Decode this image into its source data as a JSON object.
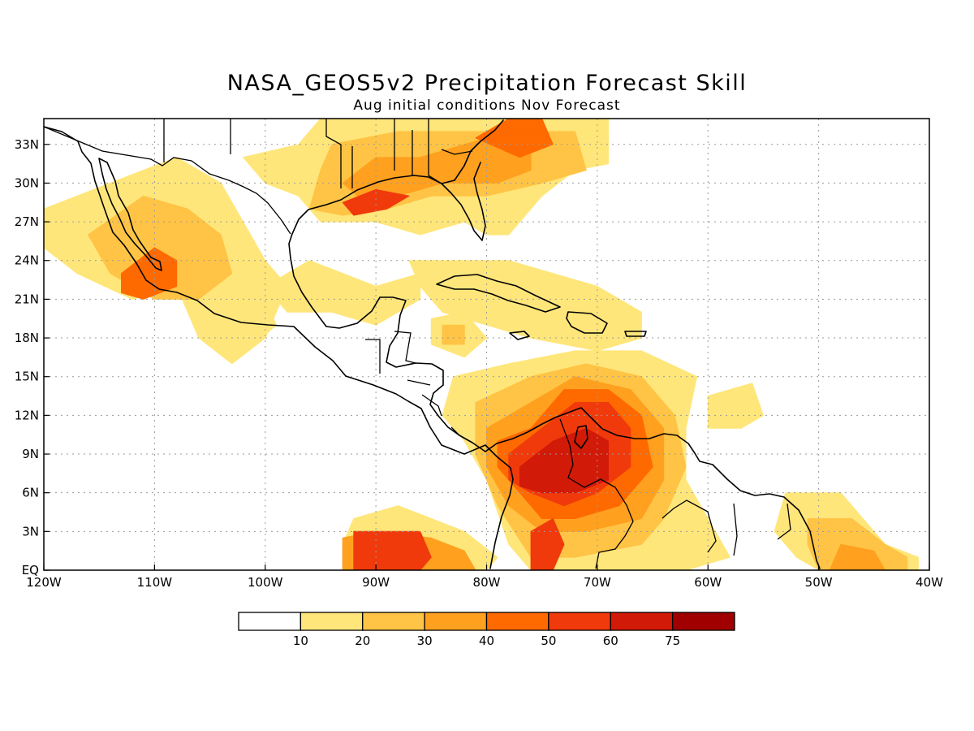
{
  "title": "NASA_GEOS5v2 Precipitation Forecast Skill",
  "subtitle": "Aug initial conditions  Nov Forecast",
  "map": {
    "lon_range": [
      -120,
      -40
    ],
    "lat_range": [
      0,
      35
    ],
    "lon_ticks": [
      {
        "v": -120,
        "label": "120W"
      },
      {
        "v": -110,
        "label": "110W"
      },
      {
        "v": -100,
        "label": "100W"
      },
      {
        "v": -90,
        "label": "90W"
      },
      {
        "v": -80,
        "label": "80W"
      },
      {
        "v": -70,
        "label": "70W"
      },
      {
        "v": -60,
        "label": "60W"
      },
      {
        "v": -50,
        "label": "50W"
      },
      {
        "v": -40,
        "label": "40W"
      }
    ],
    "lat_ticks": [
      {
        "v": 0,
        "label": "EQ"
      },
      {
        "v": 3,
        "label": "3N"
      },
      {
        "v": 6,
        "label": "6N"
      },
      {
        "v": 9,
        "label": "9N"
      },
      {
        "v": 12,
        "label": "12N"
      },
      {
        "v": 15,
        "label": "15N"
      },
      {
        "v": 18,
        "label": "18N"
      },
      {
        "v": 21,
        "label": "21N"
      },
      {
        "v": 24,
        "label": "24N"
      },
      {
        "v": 27,
        "label": "27N"
      },
      {
        "v": 30,
        "label": "30N"
      },
      {
        "v": 33,
        "label": "33N"
      }
    ],
    "gridlines": true
  },
  "colorbar": {
    "colors": [
      "#ffffff",
      "#ffe67a",
      "#ffc445",
      "#ffa01f",
      "#ff6a00",
      "#f03a0c",
      "#d21a08",
      "#a00000"
    ],
    "labels": [
      "10",
      "20",
      "30",
      "40",
      "50",
      "60",
      "75"
    ]
  },
  "skill_regions": [
    {
      "level": 1,
      "pts": [
        [
          -120,
          28
        ],
        [
          -114,
          30
        ],
        [
          -108,
          32
        ],
        [
          -104,
          30
        ],
        [
          -102,
          27
        ],
        [
          -100,
          24
        ],
        [
          -98,
          22
        ],
        [
          -100,
          18
        ],
        [
          -103,
          16
        ],
        [
          -106,
          18
        ],
        [
          -108,
          22
        ],
        [
          -112,
          21
        ],
        [
          -117,
          23
        ],
        [
          -120,
          25
        ]
      ]
    },
    {
      "level": 2,
      "pts": [
        [
          -116,
          26
        ],
        [
          -111,
          29
        ],
        [
          -107,
          28
        ],
        [
          -104,
          26
        ],
        [
          -103,
          23
        ],
        [
          -106,
          21
        ],
        [
          -110,
          21
        ],
        [
          -114,
          23
        ]
      ]
    },
    {
      "level": 4,
      "pts": [
        [
          -113,
          23
        ],
        [
          -110,
          25
        ],
        [
          -108,
          24
        ],
        [
          -108,
          22
        ],
        [
          -111,
          21
        ],
        [
          -113,
          21.5
        ]
      ]
    },
    {
      "level": 1,
      "pts": [
        [
          -103,
          20
        ],
        [
          -100,
          21
        ],
        [
          -99,
          19
        ],
        [
          -101,
          17.5
        ],
        [
          -103,
          18.5
        ]
      ]
    },
    {
      "level": 1,
      "pts": [
        [
          -100,
          22
        ],
        [
          -96,
          24
        ],
        [
          -90,
          22
        ],
        [
          -86,
          23
        ],
        [
          -86,
          21
        ],
        [
          -90,
          19
        ],
        [
          -94,
          20
        ],
        [
          -98,
          20
        ]
      ]
    },
    {
      "level": 1,
      "pts": [
        [
          -97,
          33
        ],
        [
          -95,
          35
        ],
        [
          -82,
          35
        ],
        [
          -72,
          35
        ],
        [
          -69,
          35
        ],
        [
          -69,
          31.5
        ],
        [
          -72,
          31
        ],
        [
          -75,
          29
        ],
        [
          -78,
          26
        ],
        [
          -80,
          26
        ],
        [
          -82,
          27
        ],
        [
          -86,
          26
        ],
        [
          -90,
          27
        ],
        [
          -95,
          27
        ],
        [
          -97,
          29
        ],
        [
          -100,
          30
        ],
        [
          -102,
          32
        ]
      ]
    },
    {
      "level": 2,
      "pts": [
        [
          -95,
          31
        ],
        [
          -94,
          33
        ],
        [
          -88,
          34
        ],
        [
          -84,
          34
        ],
        [
          -81,
          34
        ],
        [
          -77,
          34
        ],
        [
          -72,
          34
        ],
        [
          -71,
          31
        ],
        [
          -75,
          30
        ],
        [
          -80,
          29
        ],
        [
          -85,
          29
        ],
        [
          -89,
          28
        ],
        [
          -93,
          27.5
        ],
        [
          -96,
          28
        ]
      ]
    },
    {
      "level": 3,
      "pts": [
        [
          -93,
          30
        ],
        [
          -90,
          32
        ],
        [
          -86,
          32
        ],
        [
          -82,
          33
        ],
        [
          -78,
          34
        ],
        [
          -76,
          33
        ],
        [
          -76,
          31
        ],
        [
          -79,
          30
        ],
        [
          -84,
          30
        ],
        [
          -88,
          29
        ],
        [
          -91,
          28.5
        ]
      ]
    },
    {
      "level": 5,
      "pts": [
        [
          -93,
          28.5
        ],
        [
          -90,
          29.5
        ],
        [
          -87,
          29
        ],
        [
          -89,
          28
        ],
        [
          -92,
          27.5
        ]
      ]
    },
    {
      "level": 4,
      "pts": [
        [
          -81,
          33.5
        ],
        [
          -78,
          35
        ],
        [
          -75,
          35
        ],
        [
          -74,
          33
        ],
        [
          -77,
          32
        ]
      ]
    },
    {
      "level": 1,
      "pts": [
        [
          -87,
          24
        ],
        [
          -84,
          24
        ],
        [
          -78,
          24
        ],
        [
          -74,
          23
        ],
        [
          -70,
          22
        ],
        [
          -66,
          20
        ],
        [
          -66,
          18
        ],
        [
          -70,
          17
        ],
        [
          -76,
          18
        ],
        [
          -80,
          19
        ],
        [
          -84,
          20
        ],
        [
          -86,
          22
        ]
      ]
    },
    {
      "level": 1,
      "pts": [
        [
          -85,
          19.5
        ],
        [
          -82,
          20
        ],
        [
          -80,
          18
        ],
        [
          -82,
          16.5
        ],
        [
          -85,
          17.5
        ]
      ]
    },
    {
      "level": 2,
      "pts": [
        [
          -84,
          19
        ],
        [
          -82,
          19
        ],
        [
          -82,
          17.5
        ],
        [
          -84,
          17.5
        ]
      ]
    },
    {
      "level": 1,
      "pts": [
        [
          -83,
          15
        ],
        [
          -78,
          16
        ],
        [
          -72,
          17
        ],
        [
          -66,
          17
        ],
        [
          -61,
          15
        ],
        [
          -62,
          11
        ],
        [
          -62,
          7
        ],
        [
          -60,
          4
        ],
        [
          -58,
          1
        ],
        [
          -62,
          0
        ],
        [
          -70,
          0
        ],
        [
          -76,
          0
        ],
        [
          -78,
          2
        ],
        [
          -80,
          7
        ],
        [
          -82,
          10
        ],
        [
          -84,
          12
        ]
      ]
    },
    {
      "level": 2,
      "pts": [
        [
          -81,
          13
        ],
        [
          -76,
          15
        ],
        [
          -71,
          16
        ],
        [
          -66,
          15
        ],
        [
          -63,
          12
        ],
        [
          -62,
          8
        ],
        [
          -64,
          4
        ],
        [
          -66,
          2
        ],
        [
          -72,
          1
        ],
        [
          -76,
          1
        ],
        [
          -79,
          5
        ],
        [
          -81,
          9
        ]
      ]
    },
    {
      "level": 3,
      "pts": [
        [
          -80,
          11
        ],
        [
          -76,
          13
        ],
        [
          -72,
          15
        ],
        [
          -67,
          14
        ],
        [
          -64,
          11
        ],
        [
          -64,
          7
        ],
        [
          -66,
          4
        ],
        [
          -71,
          3
        ],
        [
          -75,
          3
        ],
        [
          -78,
          5
        ],
        [
          -80,
          8
        ]
      ]
    },
    {
      "level": 4,
      "pts": [
        [
          -79,
          10
        ],
        [
          -76,
          11
        ],
        [
          -73,
          14
        ],
        [
          -69,
          14
        ],
        [
          -66,
          12
        ],
        [
          -65,
          8
        ],
        [
          -68,
          5
        ],
        [
          -72,
          4
        ],
        [
          -75,
          4
        ],
        [
          -77,
          6
        ],
        [
          -79,
          8
        ]
      ]
    },
    {
      "level": 5,
      "pts": [
        [
          -78,
          9
        ],
        [
          -75,
          11
        ],
        [
          -72,
          13
        ],
        [
          -69,
          13
        ],
        [
          -67,
          11
        ],
        [
          -67,
          8
        ],
        [
          -70,
          6
        ],
        [
          -73,
          5
        ],
        [
          -76,
          6
        ],
        [
          -78,
          7
        ]
      ]
    },
    {
      "level": 6,
      "pts": [
        [
          -77,
          8
        ],
        [
          -74,
          10
        ],
        [
          -71,
          11
        ],
        [
          -69,
          10
        ],
        [
          -69,
          7
        ],
        [
          -72,
          6
        ],
        [
          -75,
          6
        ],
        [
          -77,
          6.5
        ]
      ]
    },
    {
      "level": 5,
      "pts": [
        [
          -76,
          3
        ],
        [
          -74,
          4
        ],
        [
          -73,
          2
        ],
        [
          -74,
          0
        ],
        [
          -76,
          0
        ]
      ]
    },
    {
      "level": 1,
      "pts": [
        [
          -92,
          4
        ],
        [
          -88,
          5
        ],
        [
          -82,
          3
        ],
        [
          -79,
          1
        ],
        [
          -80,
          0
        ],
        [
          -93,
          0
        ],
        [
          -93,
          2
        ]
      ]
    },
    {
      "level": 3,
      "pts": [
        [
          -93,
          2.5
        ],
        [
          -90,
          3
        ],
        [
          -85,
          2.5
        ],
        [
          -82,
          1.5
        ],
        [
          -81,
          0
        ],
        [
          -93,
          0
        ]
      ]
    },
    {
      "level": 5,
      "pts": [
        [
          -92,
          3
        ],
        [
          -86,
          3
        ],
        [
          -85,
          1
        ],
        [
          -86,
          0
        ],
        [
          -92,
          0
        ]
      ]
    },
    {
      "level": 1,
      "pts": [
        [
          -60,
          13.5
        ],
        [
          -56,
          14.5
        ],
        [
          -55,
          12
        ],
        [
          -57,
          11
        ],
        [
          -60,
          11
        ]
      ]
    },
    {
      "level": 1,
      "pts": [
        [
          -53,
          6
        ],
        [
          -48,
          6
        ],
        [
          -46,
          4
        ],
        [
          -44,
          2
        ],
        [
          -41,
          1
        ],
        [
          -41,
          0
        ],
        [
          -50,
          0
        ],
        [
          -52,
          1
        ],
        [
          -54,
          3
        ]
      ]
    },
    {
      "level": 2,
      "pts": [
        [
          -51,
          4
        ],
        [
          -47,
          4
        ],
        [
          -44,
          2
        ],
        [
          -42,
          1
        ],
        [
          -42,
          0
        ],
        [
          -50,
          0
        ],
        [
          -51,
          2
        ]
      ]
    },
    {
      "level": 3,
      "pts": [
        [
          -48,
          2
        ],
        [
          -45,
          1.5
        ],
        [
          -44,
          0
        ],
        [
          -49,
          0
        ]
      ]
    }
  ]
}
